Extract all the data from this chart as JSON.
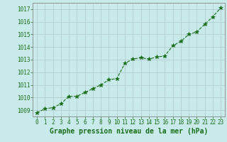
{
  "x": [
    0,
    1,
    2,
    3,
    4,
    5,
    6,
    7,
    8,
    9,
    10,
    11,
    12,
    13,
    14,
    15,
    16,
    17,
    18,
    19,
    20,
    21,
    22,
    23
  ],
  "y": [
    1008.8,
    1009.1,
    1009.2,
    1009.5,
    1010.1,
    1010.1,
    1010.4,
    1010.7,
    1011.0,
    1011.4,
    1011.5,
    1012.7,
    1013.05,
    1013.15,
    1013.05,
    1013.2,
    1013.3,
    1014.1,
    1014.45,
    1015.0,
    1015.2,
    1015.8,
    1016.4,
    1017.1
  ],
  "line_color": "#1a6e1a",
  "marker": "*",
  "marker_size": 4,
  "line_width": 0.8,
  "bg_color": "#c8eaea",
  "grid_color": "#b0c8c8",
  "plot_bg": "#c8eaea",
  "xlabel": "Graphe pression niveau de la mer (hPa)",
  "xlabel_color": "#1a6e1a",
  "xlabel_fontsize": 7,
  "ylabel_ticks": [
    1009,
    1010,
    1011,
    1012,
    1013,
    1014,
    1015,
    1016,
    1017
  ],
  "ylim": [
    1008.5,
    1017.5
  ],
  "xlim": [
    -0.5,
    23.5
  ],
  "tick_fontsize": 5.5,
  "tick_color": "#1a6e1a",
  "spine_color": "#888888"
}
